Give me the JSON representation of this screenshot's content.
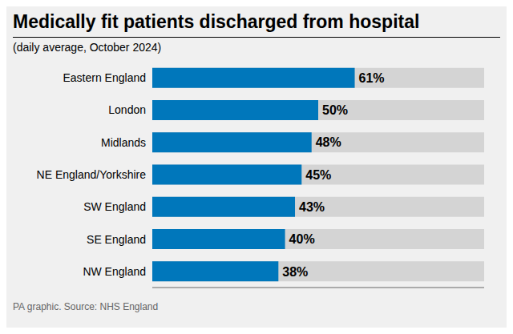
{
  "chart_data": {
    "type": "bar",
    "title": "Medically fit patients discharged from hospital",
    "subtitle": "(daily average, October 2024)",
    "footnote": "PA graphic. Source: NHS England",
    "categories": [
      "NW England",
      "SE England",
      "SW England",
      "NE England/Yorkshire",
      "Midlands",
      "London",
      "Eastern England"
    ],
    "values": [
      38,
      40,
      43,
      45,
      48,
      50,
      61
    ],
    "value_labels": [
      "38%",
      "40%",
      "43%",
      "45%",
      "48%",
      "50%",
      "61%"
    ],
    "color": "#0077bb",
    "orientation": "horizontal",
    "xlim": [
      0,
      100
    ],
    "data_labels": true,
    "tick_labels": "y",
    "grid": false
  }
}
